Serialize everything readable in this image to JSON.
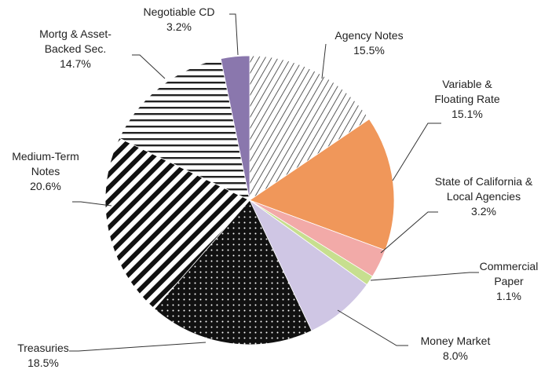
{
  "chart_data": {
    "type": "pie",
    "categories": [
      "Agency Notes",
      "Variable & Floating Rate",
      "State of California & Local Agencies",
      "Commercial Paper",
      "Money Market",
      "Treasuries",
      "Medium-Term Notes",
      "Mortg & Asset-Backed Sec.",
      "Negotiable CD"
    ],
    "values": [
      15.5,
      15.1,
      3.2,
      1.1,
      8.0,
      18.5,
      20.6,
      14.7,
      3.2
    ],
    "value_labels": [
      "15.5%",
      "15.1%",
      "3.2%",
      "1.1%",
      "8.0%",
      "18.5%",
      "20.6%",
      "14.7%",
      "3.2%"
    ],
    "colors": [
      "#333333",
      "#f0975a",
      "#f2aaa8",
      "#c7df8f",
      "#cfc6e4",
      "#111111",
      "#111111",
      "#222222",
      "#8a77ad"
    ]
  }
}
